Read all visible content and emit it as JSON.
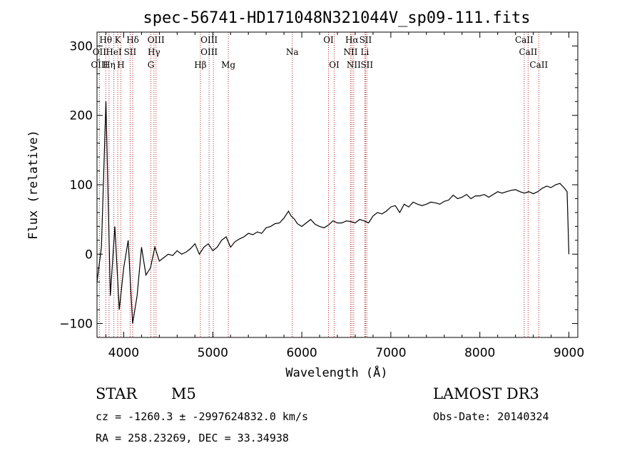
{
  "chart_data": {
    "type": "line",
    "title": "spec-56741-HD171048N321044V_sp09-111.fits",
    "xlabel": "Wavelength (Å)",
    "ylabel": "Flux (relative)",
    "xlim": [
      3700,
      9100
    ],
    "ylim": [
      -120,
      320
    ],
    "xticks": [
      4000,
      5000,
      6000,
      7000,
      8000,
      9000
    ],
    "yticks": [
      -100,
      0,
      100,
      200,
      300
    ],
    "series": [
      {
        "name": "flux",
        "x": [
          3700,
          3750,
          3800,
          3850,
          3900,
          3950,
          4000,
          4050,
          4100,
          4150,
          4200,
          4250,
          4300,
          4350,
          4400,
          4450,
          4500,
          4550,
          4600,
          4650,
          4700,
          4750,
          4800,
          4850,
          4900,
          4950,
          5000,
          5050,
          5100,
          5150,
          5200,
          5250,
          5300,
          5350,
          5400,
          5450,
          5500,
          5550,
          5600,
          5650,
          5700,
          5750,
          5800,
          5850,
          5880,
          5920,
          5950,
          6000,
          6050,
          6100,
          6150,
          6200,
          6250,
          6300,
          6350,
          6400,
          6450,
          6500,
          6550,
          6600,
          6650,
          6700,
          6750,
          6800,
          6850,
          6900,
          6950,
          7000,
          7050,
          7100,
          7150,
          7200,
          7250,
          7300,
          7350,
          7400,
          7450,
          7500,
          7550,
          7600,
          7650,
          7700,
          7750,
          7800,
          7850,
          7900,
          7950,
          8000,
          8050,
          8100,
          8150,
          8200,
          8250,
          8300,
          8350,
          8400,
          8450,
          8500,
          8550,
          8600,
          8650,
          8700,
          8750,
          8800,
          8850,
          8900,
          8950,
          8980,
          9000
        ],
        "y": [
          -40,
          10,
          220,
          -60,
          40,
          -80,
          -20,
          20,
          -100,
          -60,
          10,
          -30,
          -20,
          10,
          -10,
          -5,
          0,
          -2,
          5,
          0,
          3,
          8,
          15,
          0,
          10,
          15,
          5,
          10,
          20,
          25,
          10,
          18,
          22,
          25,
          30,
          28,
          32,
          30,
          38,
          40,
          44,
          45,
          52,
          62,
          55,
          50,
          44,
          40,
          45,
          50,
          43,
          40,
          38,
          42,
          48,
          45,
          45,
          48,
          47,
          45,
          50,
          48,
          45,
          55,
          60,
          58,
          62,
          68,
          70,
          60,
          72,
          68,
          75,
          72,
          70,
          72,
          75,
          74,
          72,
          76,
          78,
          85,
          80,
          82,
          86,
          80,
          84,
          84,
          86,
          82,
          86,
          90,
          88,
          90,
          92,
          93,
          90,
          88,
          90,
          87,
          90,
          95,
          98,
          96,
          100,
          102,
          95,
          90,
          0
        ]
      }
    ],
    "line_labels": [
      {
        "label": "Hθ",
        "x": 3798,
        "row": 0
      },
      {
        "label": "OII",
        "x": 3727,
        "row": 1
      },
      {
        "label": "OIII",
        "x": 3727,
        "row": 2
      },
      {
        "label": "K",
        "x": 3933,
        "row": 0
      },
      {
        "label": "HeI",
        "x": 3889,
        "row": 1
      },
      {
        "label": "Hη",
        "x": 3835,
        "row": 2
      },
      {
        "label": "Hδ",
        "x": 4101,
        "row": 0
      },
      {
        "label": "SII",
        "x": 4072,
        "row": 1
      },
      {
        "label": "H",
        "x": 3968,
        "row": 2
      },
      {
        "label": "OIII",
        "x": 4363,
        "row": 0
      },
      {
        "label": "Hγ",
        "x": 4340,
        "row": 1
      },
      {
        "label": "G",
        "x": 4305,
        "row": 2
      },
      {
        "label": "OIII",
        "x": 4959,
        "row": 0
      },
      {
        "label": "OIII",
        "x": 4959,
        "row": 1
      },
      {
        "label": "Hβ",
        "x": 4861,
        "row": 2
      },
      {
        "label": "Mg",
        "x": 5175,
        "row": 2
      },
      {
        "label": "Na",
        "x": 5893,
        "row": 1
      },
      {
        "label": "OI",
        "x": 6300,
        "row": 0
      },
      {
        "label": "OI",
        "x": 6364,
        "row": 2
      },
      {
        "label": "Hα",
        "x": 6563,
        "row": 0
      },
      {
        "label": "NII",
        "x": 6548,
        "row": 1
      },
      {
        "label": "NII",
        "x": 6583,
        "row": 2
      },
      {
        "label": "SII",
        "x": 6716,
        "row": 0
      },
      {
        "label": "Li",
        "x": 6708,
        "row": 1
      },
      {
        "label": "SII",
        "x": 6731,
        "row": 2
      },
      {
        "label": "CaII",
        "x": 8498,
        "row": 0
      },
      {
        "label": "CaII",
        "x": 8542,
        "row": 1
      },
      {
        "label": "CaII",
        "x": 8662,
        "row": 2
      }
    ],
    "marker_lines": [
      3727,
      3798,
      3835,
      3889,
      3933,
      3968,
      4072,
      4101,
      4305,
      4340,
      4363,
      4861,
      4959,
      5007,
      5175,
      5893,
      6300,
      6364,
      6548,
      6563,
      6583,
      6708,
      6716,
      6731,
      8498,
      8542,
      8662
    ],
    "marker_color": "#b22222"
  },
  "info": {
    "object_class": "STAR",
    "subclass": "M5",
    "survey": "LAMOST DR3",
    "velocity": "cz = -1260.3 ± -2997624832.0 km/s",
    "obs_date": "Obs-Date: 20140324",
    "coords": "RA = 258.23269, DEC =  33.34938"
  }
}
